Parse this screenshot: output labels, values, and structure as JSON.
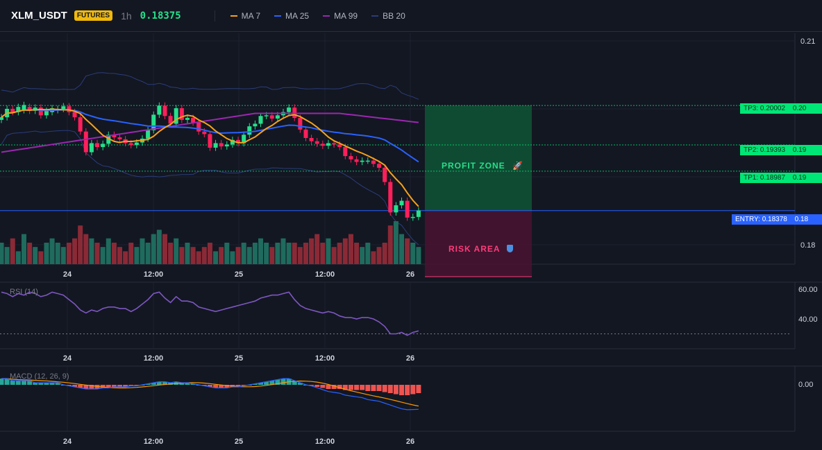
{
  "header": {
    "symbol": "XLM_USDT",
    "badge": "FUTURES",
    "timeframe": "1h",
    "price": "0.18375",
    "price_color": "#26e08b",
    "indicators": [
      {
        "label": "MA 7",
        "color": "#f7a21b"
      },
      {
        "label": "MA 25",
        "color": "#2962ff"
      },
      {
        "label": "MA 99",
        "color": "#9c27b0"
      },
      {
        "label": "BB 20",
        "color": "#2b3d7a"
      }
    ]
  },
  "price_axis": {
    "ticks": [
      {
        "label": "0.21",
        "value": 0.21
      },
      {
        "label": "0.18",
        "value": 0.1785
      }
    ]
  },
  "levels": [
    {
      "label": "TP3: 0.20002",
      "axis": "0.20",
      "value": 0.20002,
      "kind": "tp"
    },
    {
      "label": "TP2: 0.19393",
      "axis": "0.19",
      "value": 0.19393,
      "kind": "tp"
    },
    {
      "label": "TP1: 0.18987",
      "axis": "0.19",
      "value": 0.18987,
      "kind": "tp"
    },
    {
      "label": "ENTRY: 0.18378",
      "axis": "0.18",
      "value": 0.18378,
      "kind": "entry"
    }
  ],
  "zones": {
    "profit": {
      "label": "PROFIT ZONE",
      "icon": "rocket-icon"
    },
    "risk": {
      "label": "RISK AREA",
      "icon": "shield-icon"
    }
  },
  "time_axis": [
    "24",
    "12:00",
    "25",
    "12:00",
    "26"
  ],
  "rsi": {
    "title": "RSI (14)",
    "ticks": [
      "60.00",
      "40.00"
    ]
  },
  "macd": {
    "title": "MACD (12, 26, 9)",
    "ticks": [
      "0.00"
    ]
  },
  "colors": {
    "up": "#26a69a",
    "up_bright": "#26e08b",
    "down": "#f23645",
    "down_bright": "#ff1f5a",
    "rsi": "#7e57c2",
    "grid": "#1e2230",
    "tp_line": "#00e676",
    "entry_line": "#2962ff"
  },
  "chart_data": {
    "type": "candlestick",
    "closes": [
      0.1982,
      0.1995,
      0.199,
      0.1998,
      0.2001,
      0.1992,
      0.1997,
      0.1985,
      0.1992,
      0.1996,
      0.1995,
      0.1999,
      0.199,
      0.1982,
      0.196,
      0.1928,
      0.1942,
      0.1936,
      0.1941,
      0.1955,
      0.1951,
      0.1948,
      0.1942,
      0.1939,
      0.1943,
      0.1949,
      0.1962,
      0.1986,
      0.2,
      0.1984,
      0.1972,
      0.1996,
      0.1978,
      0.1981,
      0.1974,
      0.196,
      0.1956,
      0.1935,
      0.1942,
      0.1937,
      0.194,
      0.1947,
      0.1942,
      0.1955,
      0.1968,
      0.1972,
      0.1984,
      0.1985,
      0.198,
      0.1985,
      0.199,
      0.1997,
      0.1981,
      0.1963,
      0.195,
      0.1945,
      0.1941,
      0.1938,
      0.1942,
      0.194,
      0.1936,
      0.1922,
      0.1917,
      0.1913,
      0.1915,
      0.1915,
      0.191,
      0.1904,
      0.1882,
      0.1835,
      0.1846,
      0.1853,
      0.1827,
      0.1828,
      0.1838
    ],
    "opens": [
      0.1978,
      0.1982,
      0.1995,
      0.199,
      0.1993,
      0.1998,
      0.1992,
      0.1997,
      0.1985,
      0.199,
      0.1993,
      0.1995,
      0.1999,
      0.199,
      0.1982,
      0.196,
      0.1928,
      0.1942,
      0.1936,
      0.1941,
      0.1955,
      0.1951,
      0.1948,
      0.1942,
      0.1939,
      0.1943,
      0.1949,
      0.1962,
      0.1986,
      0.2,
      0.1984,
      0.1972,
      0.1996,
      0.1978,
      0.1981,
      0.1974,
      0.196,
      0.1956,
      0.1935,
      0.1942,
      0.1937,
      0.194,
      0.1947,
      0.1942,
      0.1955,
      0.1968,
      0.1972,
      0.1984,
      0.1985,
      0.198,
      0.1985,
      0.199,
      0.1997,
      0.1981,
      0.1963,
      0.195,
      0.1945,
      0.1941,
      0.1938,
      0.1942,
      0.194,
      0.1936,
      0.1922,
      0.1917,
      0.1913,
      0.1915,
      0.1915,
      0.191,
      0.1904,
      0.1882,
      0.1835,
      0.1846,
      0.1853,
      0.1827,
      0.1828
    ],
    "volume": [
      0.5,
      0.4,
      0.6,
      0.3,
      0.7,
      0.5,
      0.4,
      0.3,
      0.5,
      0.6,
      0.5,
      0.4,
      0.5,
      0.6,
      0.9,
      0.7,
      0.6,
      0.5,
      0.4,
      0.6,
      0.5,
      0.4,
      0.3,
      0.5,
      0.4,
      0.6,
      0.5,
      0.7,
      0.8,
      0.7,
      0.5,
      0.6,
      0.4,
      0.5,
      0.4,
      0.3,
      0.4,
      0.5,
      0.3,
      0.4,
      0.5,
      0.3,
      0.4,
      0.5,
      0.4,
      0.5,
      0.6,
      0.5,
      0.4,
      0.5,
      0.6,
      0.5,
      0.5,
      0.4,
      0.5,
      0.6,
      0.7,
      0.5,
      0.6,
      0.4,
      0.5,
      0.6,
      0.7,
      0.5,
      0.4,
      0.5,
      0.3,
      0.4,
      0.5,
      0.9,
      1.0,
      0.7,
      0.6,
      0.5,
      0.4
    ],
    "rsi": [
      58,
      57,
      55,
      57,
      56,
      58,
      57,
      55,
      56,
      58,
      57,
      56,
      53,
      50,
      46,
      44,
      46,
      45,
      47,
      48,
      48,
      47,
      47,
      45,
      47,
      50,
      53,
      57,
      58,
      54,
      51,
      55,
      52,
      52,
      51,
      48,
      47,
      46,
      45,
      46,
      47,
      48,
      49,
      50,
      51,
      52,
      54,
      55,
      56,
      56,
      57,
      58,
      53,
      49,
      47,
      46,
      45,
      44,
      45,
      44,
      42,
      41,
      41,
      40,
      41,
      41,
      40,
      38,
      35,
      30,
      30,
      31,
      29,
      31,
      32
    ],
    "macd_hist": [
      3,
      3,
      2,
      2,
      2,
      2,
      1,
      1,
      1,
      1,
      1,
      0,
      -0.5,
      -1,
      -1.5,
      -2,
      -2,
      -2,
      -1.5,
      -1.5,
      -1,
      -1,
      -1,
      -0.5,
      -0.5,
      0,
      0.5,
      1,
      1.5,
      1.5,
      1,
      1.5,
      1,
      1,
      0.5,
      0,
      -0.5,
      -1,
      -1.5,
      -1.5,
      -1.5,
      -1,
      -1,
      -0.5,
      0,
      0.5,
      1,
      1.5,
      2,
      2.5,
      3,
      3,
      2,
      1,
      0,
      -0.5,
      -1,
      -1.5,
      -2,
      -2,
      -2,
      -2.5,
      -2.5,
      -2.5,
      -2.5,
      -3,
      -3,
      -3,
      -3.5,
      -4,
      -4.5,
      -5,
      -5,
      -4.5,
      -4
    ],
    "ma7_color": "#f7a21b",
    "ma25_color": "#2962ff",
    "ma99_color": "#9c27b0"
  }
}
